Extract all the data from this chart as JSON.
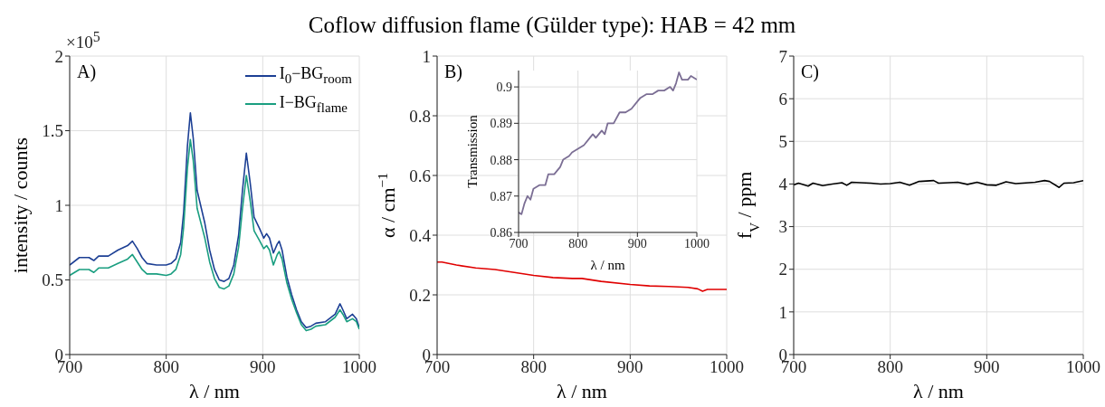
{
  "chart_data": [
    {
      "type": "line",
      "xlabel": "λ / nm",
      "ylabel": "intensity / counts",
      "annotations": [
        "A)",
        "×10$^{5}$"
      ],
      "legend": "top right",
      "grid": true,
      "x": [
        700,
        710,
        720,
        725,
        730,
        740,
        750,
        760,
        765,
        770,
        775,
        780,
        790,
        800,
        805,
        810,
        815,
        818,
        822,
        825,
        828,
        832,
        840,
        845,
        850,
        855,
        860,
        865,
        870,
        875,
        879,
        883,
        887,
        891,
        897,
        901,
        904,
        907,
        911,
        915,
        917,
        920,
        925,
        930,
        935,
        940,
        945,
        950,
        955,
        965,
        975,
        980,
        983,
        987,
        993,
        997,
        1000
      ],
      "series": [
        {
          "name": "I$_{0}$−BG$_{room}$",
          "color": "#1c3f94",
          "values": [
            0.6,
            0.65,
            0.65,
            0.63,
            0.66,
            0.66,
            0.7,
            0.73,
            0.76,
            0.71,
            0.65,
            0.61,
            0.6,
            0.6,
            0.61,
            0.64,
            0.75,
            0.95,
            1.4,
            1.62,
            1.45,
            1.1,
            0.88,
            0.7,
            0.57,
            0.5,
            0.49,
            0.51,
            0.6,
            0.8,
            1.1,
            1.35,
            1.15,
            0.92,
            0.84,
            0.78,
            0.81,
            0.78,
            0.68,
            0.74,
            0.76,
            0.7,
            0.52,
            0.4,
            0.3,
            0.22,
            0.18,
            0.19,
            0.21,
            0.22,
            0.27,
            0.34,
            0.3,
            0.24,
            0.27,
            0.24,
            0.18
          ]
        },
        {
          "name": "I−BG$_{flame}$",
          "color": "#1a9e80",
          "values": [
            0.53,
            0.57,
            0.57,
            0.55,
            0.58,
            0.58,
            0.61,
            0.64,
            0.67,
            0.62,
            0.57,
            0.54,
            0.54,
            0.53,
            0.54,
            0.57,
            0.67,
            0.85,
            1.25,
            1.44,
            1.3,
            0.98,
            0.78,
            0.62,
            0.51,
            0.45,
            0.44,
            0.46,
            0.54,
            0.72,
            0.98,
            1.2,
            1.03,
            0.83,
            0.76,
            0.71,
            0.73,
            0.7,
            0.6,
            0.67,
            0.69,
            0.64,
            0.48,
            0.37,
            0.28,
            0.2,
            0.16,
            0.17,
            0.19,
            0.2,
            0.25,
            0.3,
            0.27,
            0.22,
            0.24,
            0.22,
            0.17
          ]
        }
      ],
      "xlim": [
        700,
        1000
      ],
      "xticks": [
        700,
        800,
        900,
        1000
      ],
      "ylim": [
        0,
        2
      ],
      "yticks": [
        0,
        0.5,
        1,
        1.5,
        2
      ]
    },
    {
      "type": "line",
      "title": "Coflow diffusion flame (Gülder type): HAB = 42 mm",
      "xlabel": "λ / nm",
      "ylabel": "α / cm$^{−1}$",
      "annotations": [
        "B)"
      ],
      "grid": true,
      "x": [
        700,
        705,
        720,
        740,
        760,
        780,
        800,
        820,
        840,
        850,
        870,
        900,
        920,
        940,
        960,
        970,
        975,
        980,
        1000
      ],
      "series": [
        {
          "color": "#e00000",
          "values": [
            0.31,
            0.31,
            0.3,
            0.29,
            0.285,
            0.275,
            0.265,
            0.258,
            0.255,
            0.255,
            0.245,
            0.235,
            0.23,
            0.228,
            0.225,
            0.22,
            0.212,
            0.218,
            0.218
          ]
        }
      ],
      "xlim": [
        700,
        1000
      ],
      "xticks": [
        700,
        800,
        900,
        1000
      ],
      "ylim": [
        0,
        1
      ],
      "yticks": [
        0,
        0.2,
        0.4,
        0.6,
        0.8,
        1
      ]
    },
    {
      "type": "line",
      "xlabel": "λ / nm",
      "ylabel": "Transmission",
      "grid": true,
      "x": [
        700,
        705,
        710,
        715,
        720,
        725,
        735,
        745,
        750,
        760,
        770,
        775,
        785,
        790,
        800,
        810,
        820,
        825,
        830,
        840,
        845,
        850,
        860,
        870,
        880,
        890,
        900,
        905,
        915,
        925,
        935,
        945,
        955,
        960,
        965,
        970,
        975,
        985,
        990,
        1000
      ],
      "series": [
        {
          "color": "#7b6e94",
          "values": [
            0.8655,
            0.865,
            0.868,
            0.87,
            0.869,
            0.872,
            0.873,
            0.873,
            0.876,
            0.876,
            0.878,
            0.88,
            0.881,
            0.882,
            0.883,
            0.884,
            0.886,
            0.887,
            0.886,
            0.888,
            0.887,
            0.89,
            0.89,
            0.893,
            0.893,
            0.894,
            0.896,
            0.897,
            0.898,
            0.898,
            0.899,
            0.899,
            0.9,
            0.899,
            0.901,
            0.904,
            0.902,
            0.902,
            0.903,
            0.902
          ]
        }
      ],
      "xlim": [
        700,
        1000
      ],
      "xticks": [
        700,
        800,
        900,
        1000
      ],
      "ylim": [
        0.86,
        0.9045
      ],
      "yticks": [
        0.86,
        0.87,
        0.88,
        0.89,
        0.9
      ]
    },
    {
      "type": "line",
      "xlabel": "λ / nm",
      "ylabel": "f$_{V}$ / ppm",
      "annotations": [
        "C)"
      ],
      "grid": true,
      "x": [
        700,
        705,
        715,
        720,
        730,
        740,
        750,
        755,
        760,
        780,
        790,
        800,
        810,
        820,
        830,
        845,
        850,
        870,
        880,
        890,
        900,
        910,
        920,
        930,
        950,
        960,
        965,
        975,
        980,
        990,
        1000
      ],
      "series": [
        {
          "color": "#000000",
          "values": [
            3.98,
            4.02,
            3.95,
            4.02,
            3.96,
            4.0,
            4.03,
            3.97,
            4.04,
            4.02,
            4.0,
            4.01,
            4.04,
            3.97,
            4.06,
            4.08,
            4.02,
            4.04,
            3.99,
            4.04,
            3.98,
            3.97,
            4.05,
            4.01,
            4.04,
            4.08,
            4.06,
            3.92,
            4.02,
            4.03,
            4.08
          ]
        }
      ],
      "xlim": [
        700,
        1000
      ],
      "xticks": [
        700,
        800,
        900,
        1000
      ],
      "ylim": [
        0,
        7
      ],
      "yticks": [
        0,
        1,
        2,
        3,
        4,
        5,
        6,
        7
      ]
    }
  ]
}
